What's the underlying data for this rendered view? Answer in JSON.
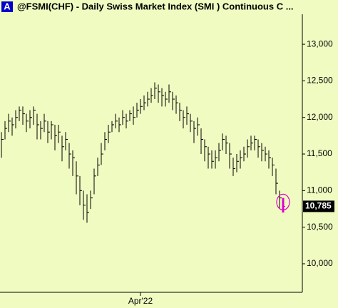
{
  "chart_data": {
    "type": "ohlc",
    "badge": "A",
    "title": "@FSMI(CHF) - Daily  Swiss Market Index (SMI ) Continuous C ...",
    "bar_color": "#000000",
    "highlight_color": "#e000d0",
    "background": "#effbc1",
    "categories": [
      null,
      null,
      null,
      null,
      null,
      null,
      null,
      null,
      null,
      null,
      null,
      null,
      null,
      null,
      null,
      null,
      null,
      null,
      null,
      null,
      null,
      null,
      null,
      null,
      null,
      null,
      null,
      null,
      null,
      null,
      null,
      null,
      null,
      null,
      null,
      null,
      null,
      null,
      null,
      "Apr'22",
      null,
      null,
      null,
      null,
      null,
      null,
      null,
      null,
      null,
      null,
      null,
      null,
      null,
      null,
      null,
      null,
      null,
      null,
      null,
      null,
      null,
      null,
      null,
      null,
      null,
      null,
      null,
      null,
      null,
      null,
      null,
      null,
      null,
      null,
      null,
      null,
      null,
      null,
      null,
      null
    ],
    "high": [
      11800,
      11950,
      12050,
      12000,
      12100,
      12150,
      12150,
      12050,
      12100,
      12150,
      12050,
      11950,
      12050,
      11950,
      11950,
      11900,
      11900,
      11750,
      11800,
      11650,
      11550,
      11400,
      11200,
      11000,
      10950,
      11000,
      11300,
      11450,
      11650,
      11800,
      11900,
      11950,
      12050,
      12000,
      12100,
      12050,
      12100,
      12150,
      12200,
      12250,
      12300,
      12350,
      12400,
      12480,
      12450,
      12400,
      12350,
      12450,
      12350,
      12300,
      12200,
      12100,
      12150,
      12050,
      11950,
      12000,
      11850,
      11700,
      11600,
      11550,
      11550,
      11650,
      11780,
      11750,
      11650,
      11450,
      11500,
      11550,
      11600,
      11700,
      11750,
      11750,
      11700,
      11650,
      11600,
      11550,
      11450,
      11300,
      11000,
      10900
    ],
    "low": [
      11450,
      11700,
      11800,
      11750,
      11850,
      11950,
      11900,
      11800,
      11850,
      11900,
      11700,
      11700,
      11800,
      11650,
      11700,
      11550,
      11650,
      11400,
      11550,
      11300,
      11200,
      10950,
      10800,
      10600,
      10560,
      10750,
      10950,
      11200,
      11350,
      11550,
      11650,
      11800,
      11850,
      11800,
      11900,
      11850,
      11950,
      11900,
      12000,
      12050,
      12100,
      12150,
      12200,
      12250,
      12200,
      12150,
      12150,
      12200,
      12100,
      12050,
      11950,
      11850,
      11900,
      11800,
      11650,
      11750,
      11500,
      11400,
      11300,
      11300,
      11300,
      11400,
      11550,
      11500,
      11300,
      11200,
      11250,
      11300,
      11400,
      11450,
      11550,
      11550,
      11450,
      11400,
      11400,
      11300,
      11200,
      10950,
      10750,
      10700
    ],
    "close": [
      11700,
      11850,
      11950,
      11900,
      12000,
      12100,
      12050,
      11950,
      12000,
      12100,
      11900,
      11850,
      11950,
      11800,
      11900,
      11750,
      11800,
      11600,
      11700,
      11500,
      11450,
      11200,
      11000,
      10800,
      10700,
      10900,
      11200,
      11350,
      11500,
      11700,
      11800,
      11900,
      11950,
      11900,
      12000,
      11950,
      12050,
      12000,
      12100,
      12150,
      12200,
      12250,
      12300,
      12400,
      12350,
      12300,
      12250,
      12350,
      12250,
      12200,
      12100,
      12000,
      12050,
      11950,
      11850,
      11900,
      11700,
      11600,
      11500,
      11400,
      11450,
      11550,
      11700,
      11650,
      11500,
      11300,
      11400,
      11450,
      11500,
      11600,
      11650,
      11700,
      11600,
      11550,
      11500,
      11450,
      11350,
      11100,
      10900,
      10785
    ],
    "last_price": {
      "value": 10785,
      "label": "10,785"
    },
    "ylim": [
      9610,
      13410
    ],
    "yticks": [
      {
        "value": 10000,
        "label": "10,000"
      },
      {
        "value": 10500,
        "label": "10,500"
      },
      {
        "value": 11000,
        "label": "11,000"
      },
      {
        "value": 11500,
        "label": "11,500"
      },
      {
        "value": 12000,
        "label": "12,000"
      },
      {
        "value": 12500,
        "label": "12,500"
      },
      {
        "value": 13000,
        "label": "13,000"
      }
    ]
  }
}
